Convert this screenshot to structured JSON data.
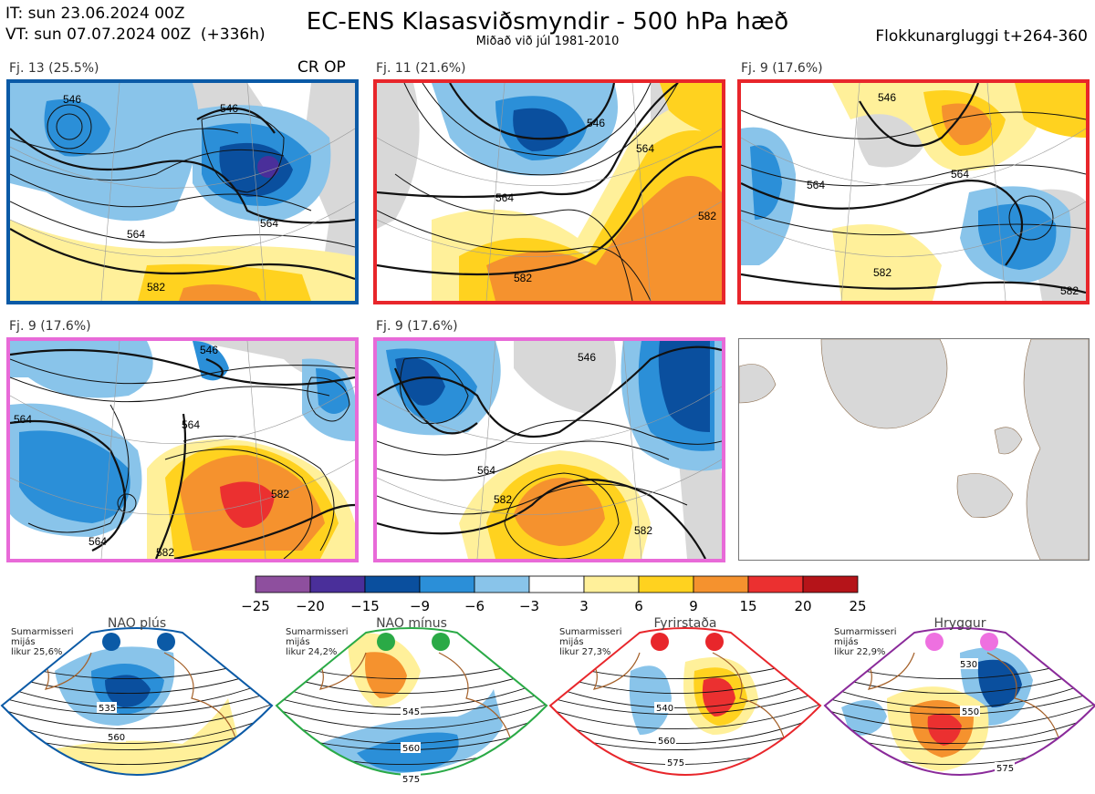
{
  "header": {
    "it_line": "IT: sun 23.06.2024 00Z",
    "vt_line": "VT: sun 07.07.2024 00Z  (+336h)",
    "title": "EC-ENS Klasasviðsmyndir - 500 hPa hæð",
    "subtitle": "Miðað við júl 1981-2010",
    "window": "Flokkunargluggi t+264-360"
  },
  "panels": [
    {
      "label": "Fj. 13 (25.5%)",
      "tag": "CR OP",
      "border": "#0b5aa6",
      "contours": [
        "546",
        "546",
        "564",
        "564",
        "582"
      ]
    },
    {
      "label": "Fj. 11 (21.6%)",
      "tag": "",
      "border": "#e8262b",
      "contours": [
        "546",
        "564",
        "564",
        "582",
        "582"
      ]
    },
    {
      "label": "Fj. 9 (17.6%)",
      "tag": "",
      "border": "#e8262b",
      "contours": [
        "546",
        "564",
        "564",
        "582",
        "582"
      ]
    },
    {
      "label": "Fj. 9 (17.6%)",
      "tag": "",
      "border": "#e86ad8",
      "contours": [
        "546",
        "564",
        "564",
        "564",
        "582",
        "582"
      ]
    },
    {
      "label": "Fj. 9 (17.6%)",
      "tag": "",
      "border": "#e86ad8",
      "contours": [
        "546",
        "564",
        "582",
        "582"
      ]
    }
  ],
  "colorbar": {
    "ticks": [
      "−25",
      "−20",
      "−15",
      "−9",
      "−6",
      "−3",
      "3",
      "6",
      "9",
      "15",
      "20",
      "25"
    ],
    "colors": [
      "#8e4f9e",
      "#4a2f9a",
      "#0a4f9e",
      "#2b8fd8",
      "#89c4ea",
      "#ffffff",
      "#fff09a",
      "#ffd21f",
      "#f5922e",
      "#eb3030",
      "#b51419"
    ]
  },
  "regimes": [
    {
      "title": "NAO plús",
      "season": "Sumarmisseri",
      "mean": "mijás",
      "prob": "likur 25,6%",
      "dot_color": "#0b5aa6",
      "border": "#0b5aa6",
      "contours": [
        "535",
        "560"
      ]
    },
    {
      "title": "NAO mínus",
      "season": "Sumarmisseri",
      "mean": "mijás",
      "prob": "likur 24,2%",
      "dot_color": "#2aaa46",
      "border": "#2aaa46",
      "contours": [
        "545",
        "560",
        "575"
      ]
    },
    {
      "title": "Fyrirstaða",
      "season": "Sumarmisseri",
      "mean": "mijás",
      "prob": "likur 27,3%",
      "dot_color": "#e8262b",
      "border": "#e8262b",
      "contours": [
        "540",
        "560",
        "575"
      ]
    },
    {
      "title": "Hryggur",
      "season": "Sumarmisseri",
      "mean": "mijás",
      "prob": "likur 22,9%",
      "dot_color": "#ee70e0",
      "border": "#8a2a9a",
      "contours": [
        "530",
        "550",
        "575"
      ]
    }
  ]
}
